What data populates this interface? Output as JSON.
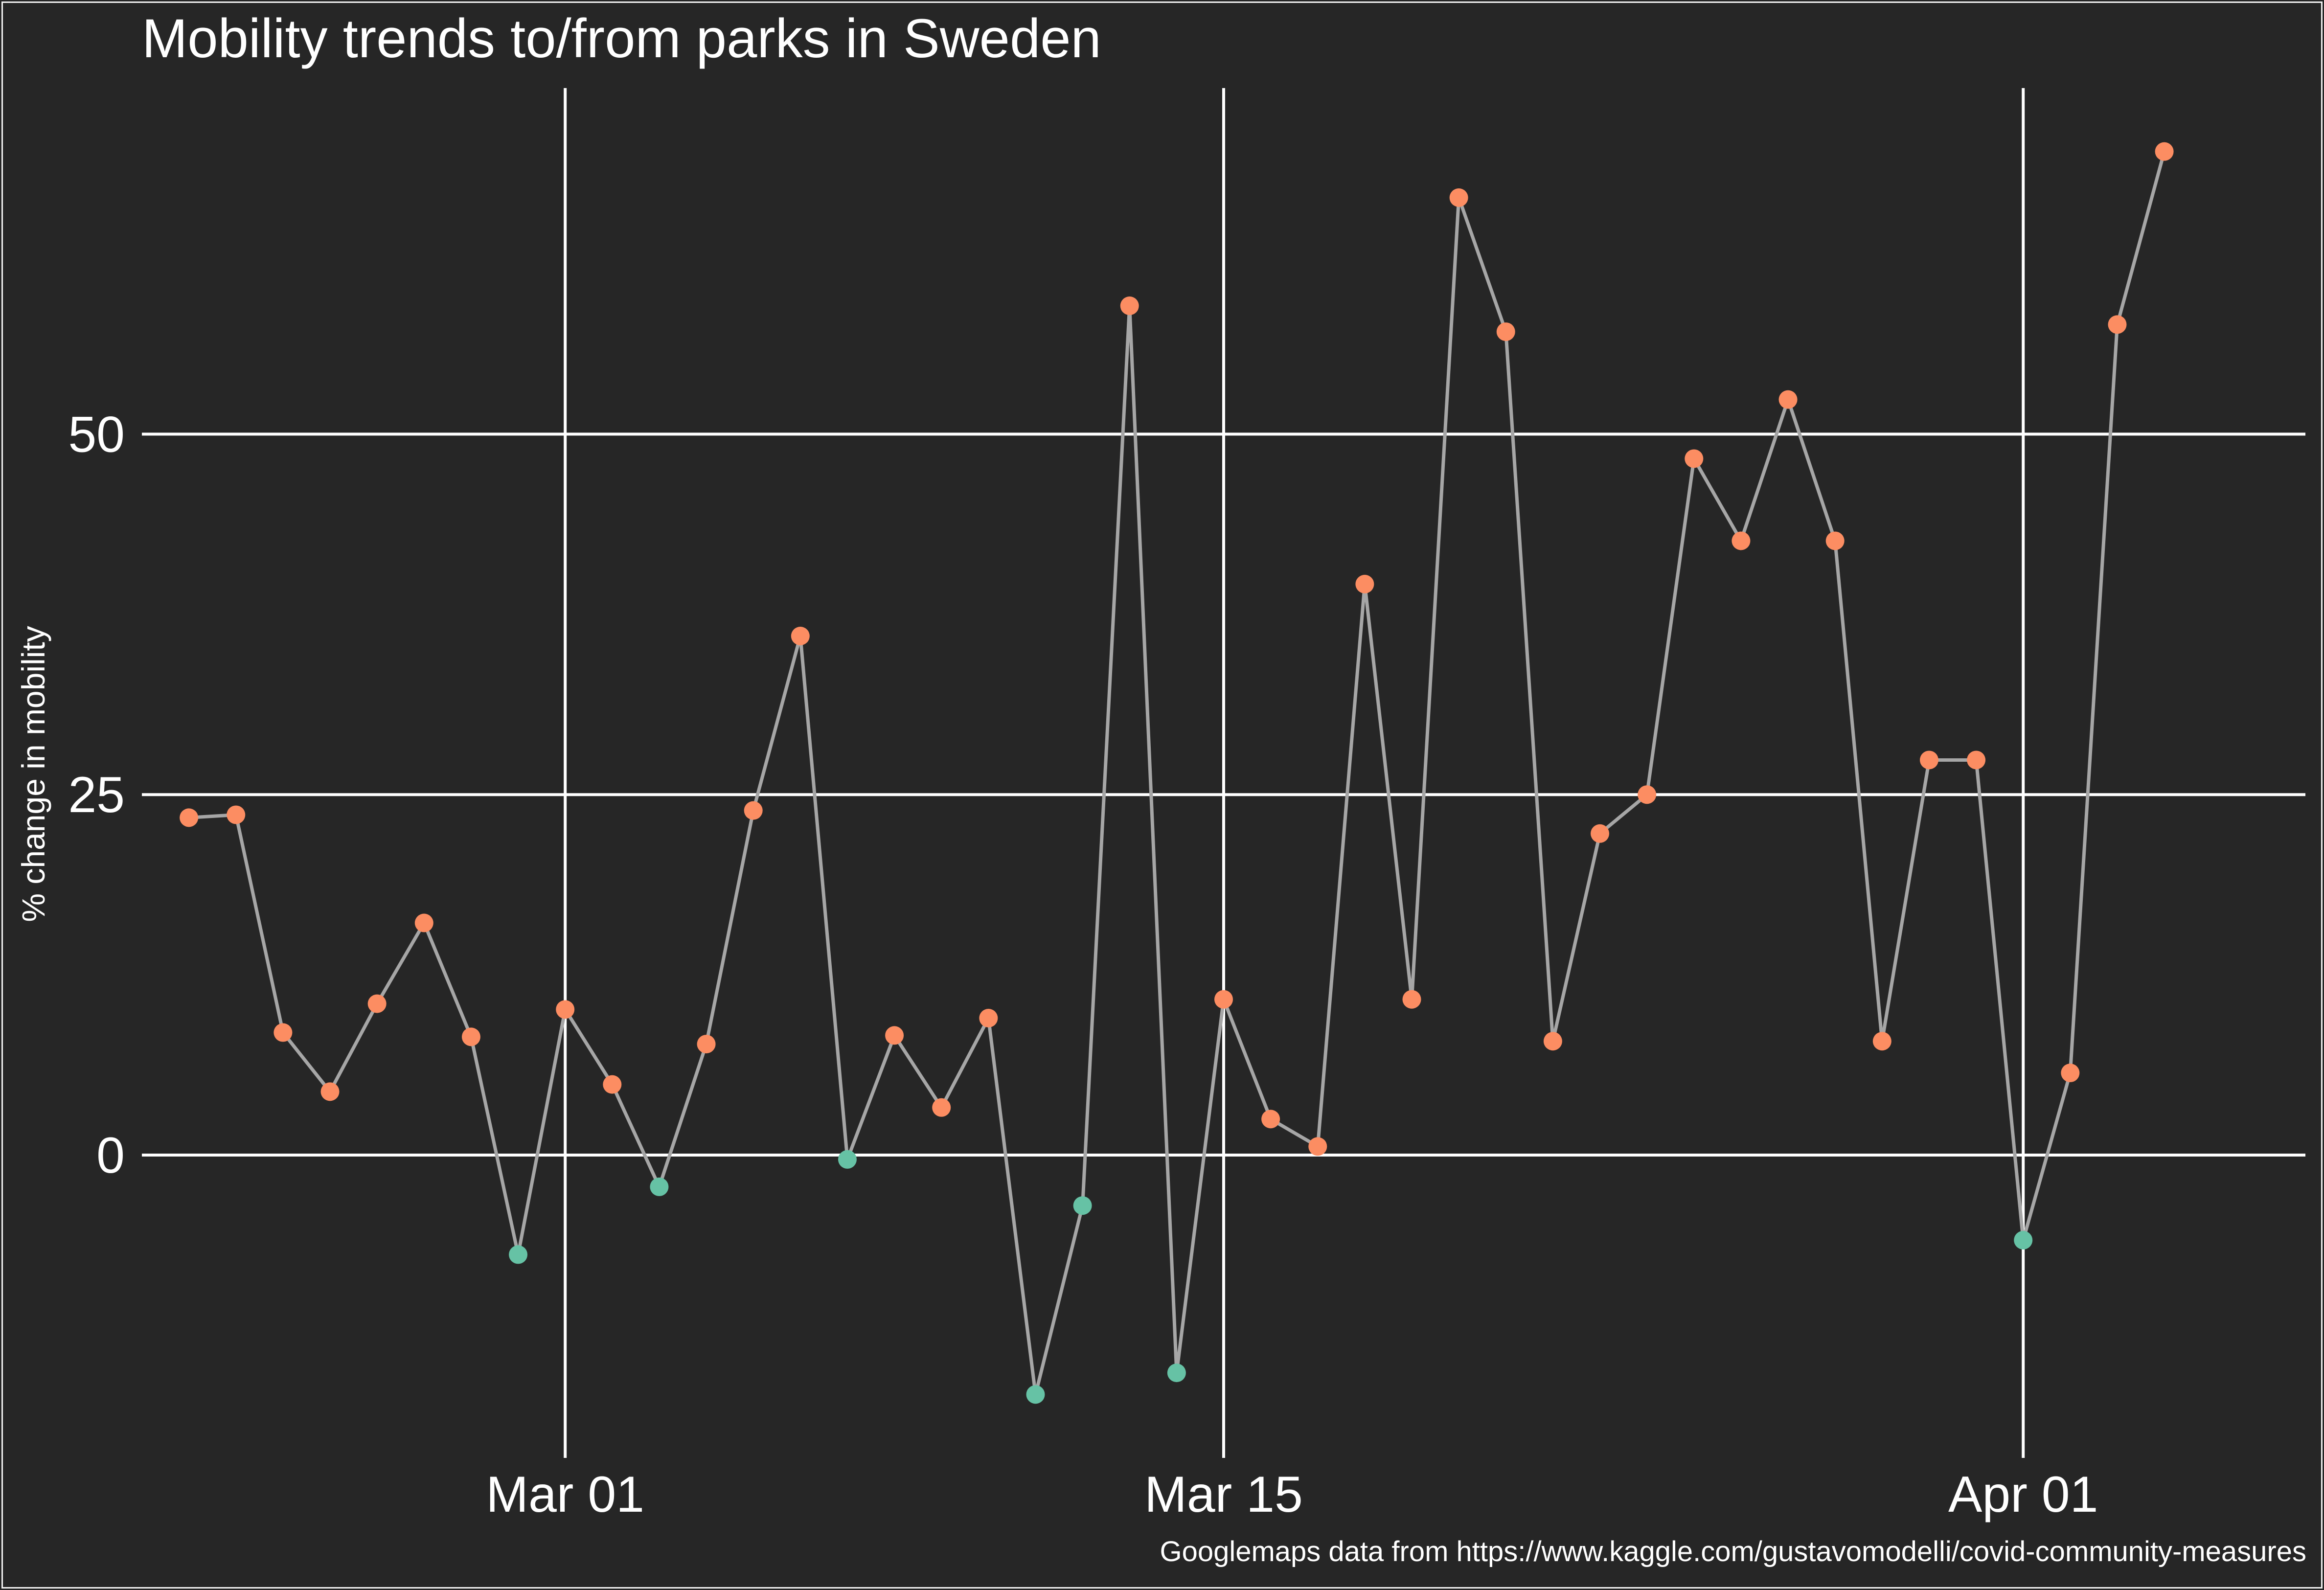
{
  "colors": {
    "background": "#262626",
    "grid": "#ffffff",
    "line": "#a6a6a6",
    "above_zero_point": "#fc8d62",
    "below_zero_point": "#66c2a5"
  },
  "caption": "Googlemaps data from https://www.kaggle.com/gustavomodelli/covid-community-measures",
  "chart_data": {
    "type": "line",
    "title": "Mobility trends to/from parks in Sweden",
    "xlabel": "",
    "ylabel": "% change in mobility",
    "x_ticks": [
      {
        "date": "2020-03-01",
        "label": "Mar 01"
      },
      {
        "date": "2020-03-15",
        "label": "Mar 15"
      },
      {
        "date": "2020-04-01",
        "label": "Apr 01"
      }
    ],
    "y_ticks": [
      0,
      25,
      50
    ],
    "xlim": [
      "2020-02-21",
      "2020-04-07"
    ],
    "ylim": [
      -21,
      74
    ],
    "grid": true,
    "legend": "none",
    "series": [
      {
        "points": [
          {
            "date": "2020-02-22",
            "value": 23.4
          },
          {
            "date": "2020-02-23",
            "value": 23.6
          },
          {
            "date": "2020-02-24",
            "value": 8.5
          },
          {
            "date": "2020-02-25",
            "value": 4.4
          },
          {
            "date": "2020-02-26",
            "value": 10.5
          },
          {
            "date": "2020-02-27",
            "value": 16.1
          },
          {
            "date": "2020-02-28",
            "value": 8.2
          },
          {
            "date": "2020-02-29",
            "value": -6.9
          },
          {
            "date": "2020-03-01",
            "value": 10.1
          },
          {
            "date": "2020-03-02",
            "value": 4.9
          },
          {
            "date": "2020-03-03",
            "value": -2.2
          },
          {
            "date": "2020-03-04",
            "value": 7.7
          },
          {
            "date": "2020-03-05",
            "value": 23.9
          },
          {
            "date": "2020-03-06",
            "value": 36.0
          },
          {
            "date": "2020-03-07",
            "value": -0.3
          },
          {
            "date": "2020-03-08",
            "value": 8.3
          },
          {
            "date": "2020-03-09",
            "value": 3.3
          },
          {
            "date": "2020-03-10",
            "value": 9.5
          },
          {
            "date": "2020-03-11",
            "value": -16.6
          },
          {
            "date": "2020-03-12",
            "value": -3.5
          },
          {
            "date": "2020-03-13",
            "value": 58.9
          },
          {
            "date": "2020-03-14",
            "value": -15.1
          },
          {
            "date": "2020-03-15",
            "value": 10.8
          },
          {
            "date": "2020-03-16",
            "value": 2.5
          },
          {
            "date": "2020-03-17",
            "value": 0.6
          },
          {
            "date": "2020-03-18",
            "value": 39.6
          },
          {
            "date": "2020-03-19",
            "value": 10.8
          },
          {
            "date": "2020-03-20",
            "value": 66.4
          },
          {
            "date": "2020-03-21",
            "value": 57.1
          },
          {
            "date": "2020-03-22",
            "value": 7.9
          },
          {
            "date": "2020-03-23",
            "value": 22.3
          },
          {
            "date": "2020-03-24",
            "value": 25.0
          },
          {
            "date": "2020-03-25",
            "value": 48.3
          },
          {
            "date": "2020-03-26",
            "value": 42.6
          },
          {
            "date": "2020-03-27",
            "value": 52.4
          },
          {
            "date": "2020-03-28",
            "value": 42.6
          },
          {
            "date": "2020-03-29",
            "value": 7.9
          },
          {
            "date": "2020-03-30",
            "value": 27.4
          },
          {
            "date": "2020-03-31",
            "value": 27.4
          },
          {
            "date": "2020-04-01",
            "value": -5.9
          },
          {
            "date": "2020-04-02",
            "value": 5.7
          },
          {
            "date": "2020-04-03",
            "value": 57.6
          },
          {
            "date": "2020-04-04",
            "value": 69.6
          }
        ]
      }
    ]
  }
}
